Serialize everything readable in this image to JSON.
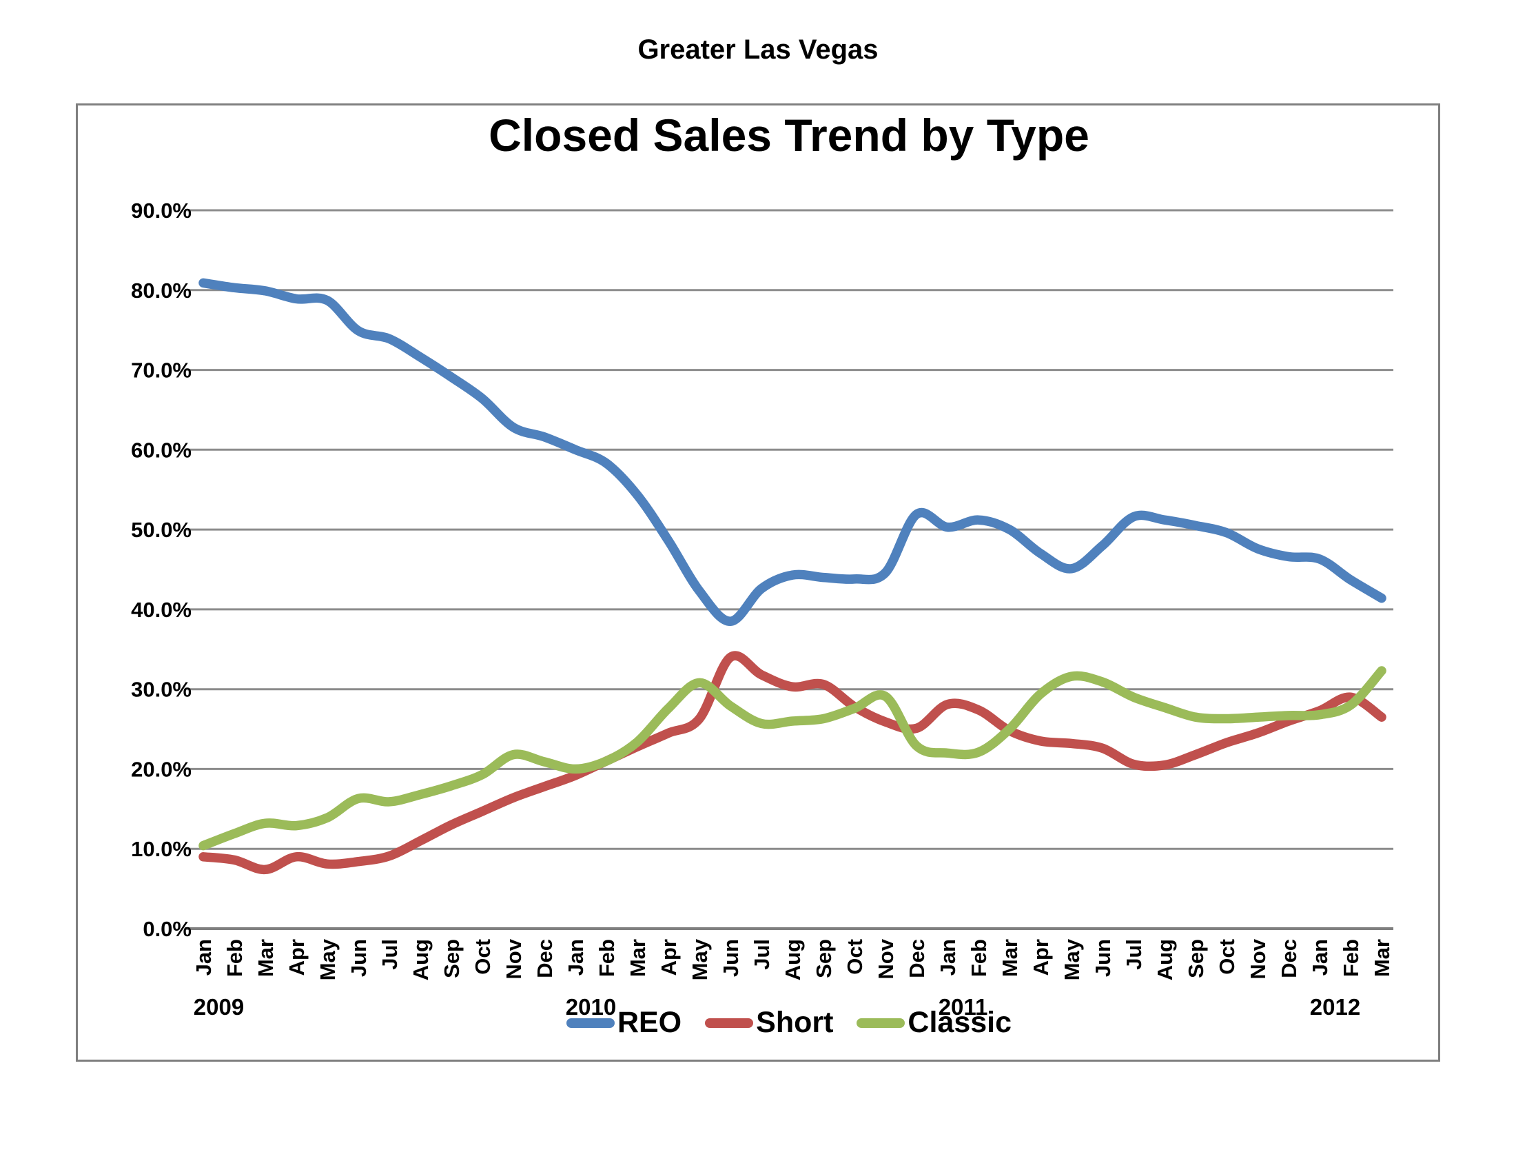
{
  "page": {
    "header": "Greater Las Vegas"
  },
  "chart": {
    "title": "Closed Sales Trend by Type",
    "legend": [
      {
        "label": "REO",
        "color": "#4F81BD"
      },
      {
        "label": "Short",
        "color": "#C0504D"
      },
      {
        "label": "Classic",
        "color": "#9BBB59"
      }
    ]
  },
  "colors": {
    "gridline": "#8c8c8c",
    "axis_line": "#7f7f7f",
    "box_border": "#7f7f7f",
    "text": "#000000"
  },
  "chart_data": {
    "type": "line",
    "title": "Closed Sales Trend by Type",
    "grid": "horizontal",
    "line_smoothing": true,
    "legend_position": "bottom",
    "ylim": [
      0,
      90
    ],
    "ytick_step": 10,
    "ytick_labels": [
      "0.0%",
      "10.0%",
      "20.0%",
      "30.0%",
      "40.0%",
      "50.0%",
      "60.0%",
      "70.0%",
      "80.0%",
      "90.0%"
    ],
    "month_labels": [
      "Jan",
      "Feb",
      "Mar",
      "Apr",
      "May",
      "Jun",
      "Jul",
      "Aug",
      "Sep",
      "Oct",
      "Nov",
      "Dec",
      "Jan",
      "Feb",
      "Mar",
      "Apr",
      "May",
      "Jun",
      "Jul",
      "Aug",
      "Sep",
      "Oct",
      "Nov",
      "Dec",
      "Jan",
      "Feb",
      "Mar",
      "Apr",
      "May",
      "Jun",
      "Jul",
      "Aug",
      "Sep",
      "Oct",
      "Nov",
      "Dec",
      "Jan",
      "Feb",
      "Mar"
    ],
    "year_labels": [
      {
        "text": "2009",
        "at_month_index": 0
      },
      {
        "text": "2010",
        "at_month_index": 12
      },
      {
        "text": "2011",
        "at_month_index": 24
      },
      {
        "text": "2012",
        "at_month_index": 36
      }
    ],
    "series": [
      {
        "name": "REO",
        "color": "#4F81BD",
        "values": [
          80.9,
          80.3,
          79.9,
          78.9,
          78.7,
          74.9,
          73.9,
          71.6,
          69.1,
          66.4,
          62.8,
          61.6,
          60.0,
          58.3,
          54.3,
          48.6,
          42.3,
          38.5,
          42.6,
          44.3,
          44.0,
          43.8,
          44.6,
          51.9,
          50.3,
          51.2,
          50.0,
          47.0,
          45.1,
          48.0,
          51.6,
          51.2,
          50.5,
          49.6,
          47.6,
          46.6,
          46.3,
          43.7,
          41.4
        ]
      },
      {
        "name": "Short",
        "color": "#C0504D",
        "values": [
          9.0,
          8.6,
          7.4,
          9.0,
          8.1,
          8.4,
          9.1,
          11.0,
          13.0,
          14.7,
          16.4,
          17.8,
          19.2,
          21.0,
          22.8,
          24.5,
          26.3,
          34.0,
          31.8,
          30.3,
          30.6,
          27.8,
          25.9,
          25.1,
          28.1,
          27.4,
          24.8,
          23.5,
          23.2,
          22.6,
          20.6,
          20.5,
          21.8,
          23.3,
          24.5,
          26.0,
          27.3,
          29.0,
          26.5
        ]
      },
      {
        "name": "Classic",
        "color": "#9BBB59",
        "values": [
          10.4,
          11.9,
          13.2,
          12.9,
          13.9,
          16.3,
          15.9,
          16.8,
          17.9,
          19.3,
          21.8,
          20.9,
          20.0,
          21.0,
          23.4,
          27.6,
          30.8,
          27.9,
          25.7,
          26.0,
          26.3,
          27.6,
          29.1,
          22.9,
          22.0,
          22.1,
          25.0,
          29.4,
          31.6,
          30.9,
          29.0,
          27.7,
          26.5,
          26.3,
          26.5,
          26.7,
          26.8,
          28.0,
          32.3
        ]
      }
    ]
  }
}
